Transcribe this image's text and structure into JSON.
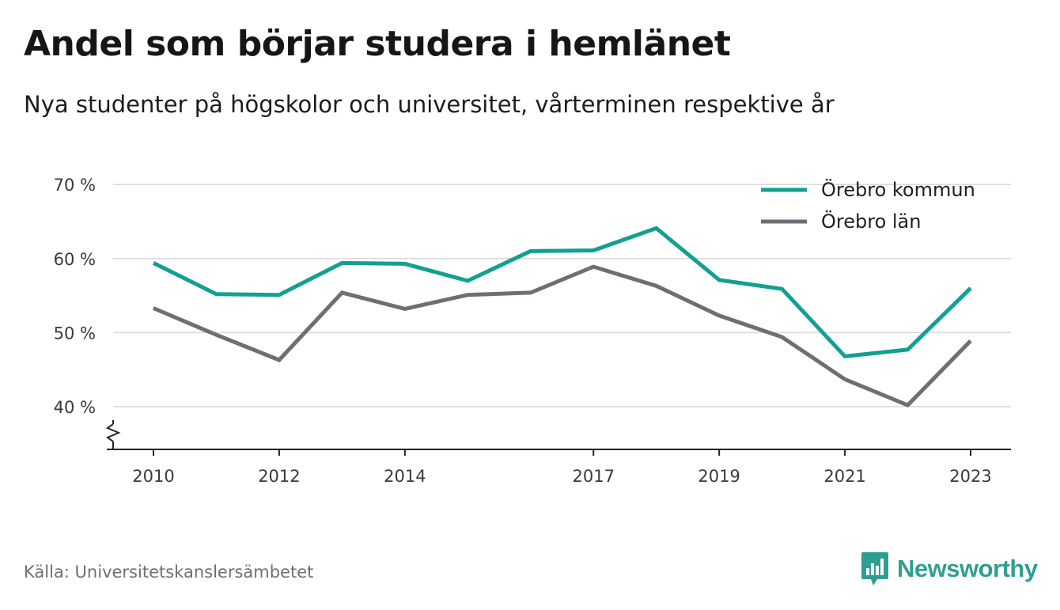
{
  "header": {
    "title": "Andel som börjar studera i hemlänet",
    "subtitle": "Nya studenter på högskolor och universitet, vårterminen respektive år"
  },
  "footer": {
    "source": "Källa: Universitetskanslersämbetet",
    "brand": "Newsworthy",
    "brand_icon": "bar-chart-speech-bubble-icon",
    "brand_color": "#2f9e91"
  },
  "chart_data": {
    "type": "line",
    "x": [
      2010,
      2011,
      2012,
      2013,
      2014,
      2015,
      2016,
      2017,
      2018,
      2019,
      2020,
      2021,
      2022,
      2023
    ],
    "x_tick_labels": [
      "2010",
      "2012",
      "2014",
      "2017",
      "2019",
      "2021",
      "2023"
    ],
    "y_tick_labels": [
      "40 %",
      "50 %",
      "60 %",
      "70 %"
    ],
    "y_ticks": [
      40,
      50,
      60,
      70
    ],
    "ylim": [
      34,
      70
    ],
    "y_axis_break": true,
    "grid": true,
    "legend_position": "top-right",
    "series": [
      {
        "name": "Örebro kommun",
        "color": "#12a090",
        "values": [
          59.4,
          55.2,
          55.1,
          59.4,
          59.3,
          57.0,
          61.0,
          61.1,
          64.1,
          57.1,
          55.9,
          46.8,
          47.7,
          56.0
        ]
      },
      {
        "name": "Örebro län",
        "color": "#6f6e74",
        "values": [
          53.3,
          49.7,
          46.3,
          55.4,
          53.2,
          55.1,
          55.4,
          58.9,
          56.3,
          52.3,
          49.4,
          43.7,
          40.2,
          48.9
        ]
      }
    ]
  }
}
